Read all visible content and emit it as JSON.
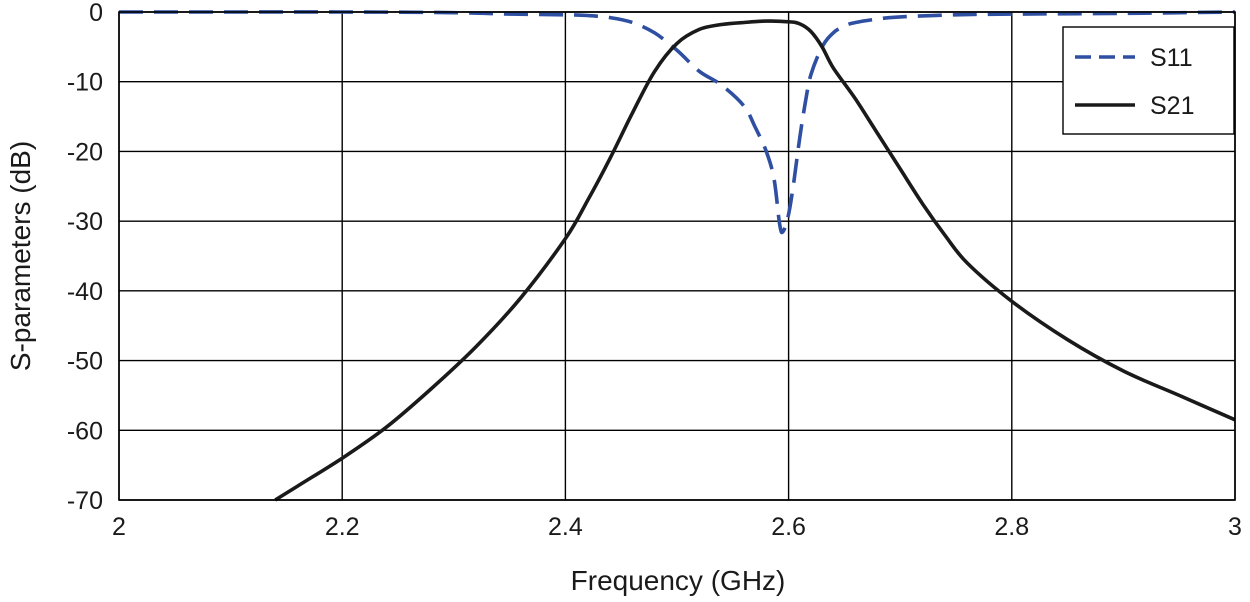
{
  "chart_data": {
    "type": "line",
    "title": "",
    "xlabel": "Frequency (GHz)",
    "ylabel": "S-parameters (dB)",
    "xlim": [
      2,
      3
    ],
    "ylim": [
      -70,
      0
    ],
    "xticks": [
      "2",
      "2.2",
      "2.4",
      "2.6",
      "2.8",
      "3"
    ],
    "yticks": [
      "0",
      "-10",
      "-20",
      "-30",
      "-40",
      "-50",
      "-60",
      "-70"
    ],
    "xtick_values": [
      2,
      2.2,
      2.4,
      2.6,
      2.8,
      3
    ],
    "ytick_values": [
      0,
      -10,
      -20,
      -30,
      -40,
      -50,
      -60,
      -70
    ],
    "grid": true,
    "legend_position": "top-right",
    "series": [
      {
        "name": "S11",
        "style": "dashed",
        "color": "#2f4fa2",
        "x": [
          2.0,
          2.1,
          2.2,
          2.3,
          2.35,
          2.4,
          2.42,
          2.44,
          2.46,
          2.48,
          2.5,
          2.52,
          2.54,
          2.56,
          2.57,
          2.58,
          2.587,
          2.592,
          2.595,
          2.6,
          2.605,
          2.61,
          2.615,
          2.62,
          2.63,
          2.64,
          2.65,
          2.66,
          2.68,
          2.7,
          2.75,
          2.8,
          2.9,
          3.0
        ],
        "y": [
          0,
          0,
          0,
          -0.1,
          -0.3,
          -0.4,
          -0.5,
          -0.8,
          -1.5,
          -3,
          -5.5,
          -8.5,
          -10.5,
          -13.5,
          -16.5,
          -20,
          -24,
          -30.5,
          -31.5,
          -29,
          -24,
          -18,
          -13,
          -9,
          -5,
          -3,
          -2,
          -1.5,
          -1,
          -0.7,
          -0.4,
          -0.3,
          -0.2,
          0
        ]
      },
      {
        "name": "S21",
        "style": "solid",
        "color": "#1a1a1a",
        "x": [
          2.14,
          2.16,
          2.2,
          2.24,
          2.28,
          2.32,
          2.36,
          2.4,
          2.42,
          2.44,
          2.46,
          2.48,
          2.5,
          2.52,
          2.54,
          2.56,
          2.58,
          2.6,
          2.61,
          2.62,
          2.63,
          2.64,
          2.66,
          2.68,
          2.7,
          2.72,
          2.74,
          2.76,
          2.8,
          2.85,
          2.9,
          2.95,
          3.0
        ],
        "y": [
          -70,
          -68,
          -64,
          -59.5,
          -54,
          -48,
          -41,
          -32.5,
          -27,
          -21,
          -14.5,
          -8.5,
          -4.5,
          -2.5,
          -1.8,
          -1.5,
          -1.3,
          -1.4,
          -1.7,
          -2.8,
          -5,
          -8,
          -12.5,
          -17.5,
          -22.5,
          -27.5,
          -32,
          -36,
          -41.5,
          -47,
          -51.5,
          -55,
          -58.5
        ]
      }
    ]
  }
}
